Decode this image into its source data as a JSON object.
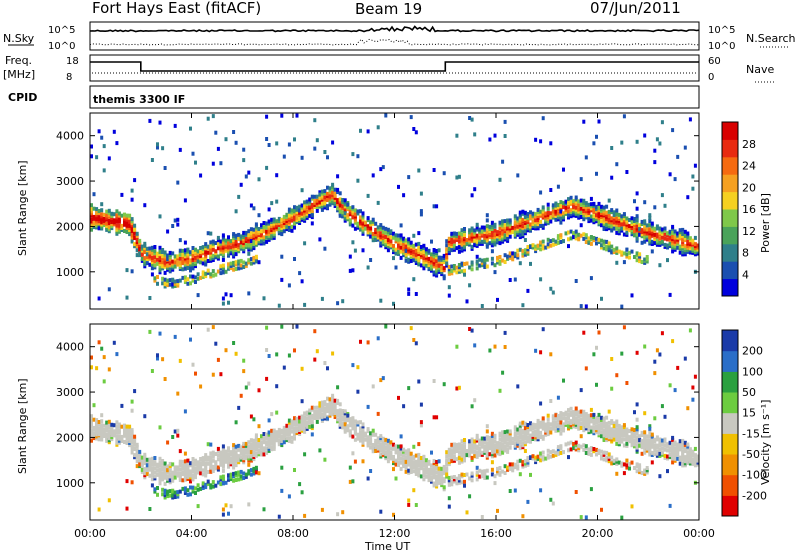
{
  "header": {
    "title": "Fort Hays East (fitACF)",
    "beam": "Beam 19",
    "date": "07/Jun/2011"
  },
  "nsky_panel": {
    "left_label": "N.Sky",
    "right_label": "N.Search",
    "left_ticks": [
      "10^5",
      "10^0"
    ],
    "right_ticks": [
      "10^5",
      "10^0"
    ]
  },
  "freq_panel": {
    "left_label_line1": "Freq.",
    "left_label_line2": "[MHz]",
    "right_label": "Nave",
    "left_ticks": [
      "18",
      "8"
    ],
    "right_ticks": [
      "60",
      "0"
    ],
    "freq_steps": [
      {
        "t0": 0,
        "t1": 2.0,
        "value": "high"
      },
      {
        "t0": 2.0,
        "t1": 14.0,
        "value": "low"
      },
      {
        "t0": 14.0,
        "t1": 24,
        "value": "high"
      }
    ]
  },
  "cpid_panel": {
    "label": "CPID",
    "program": "themis 3300 IF"
  },
  "power_panel": {
    "ylabel": "Slant Range [km]",
    "yticks": [
      "4000",
      "3000",
      "2000",
      "1000"
    ],
    "colorbar_label": "Power [dB]",
    "colorbar_ticks": [
      "28",
      "24",
      "20",
      "16",
      "12",
      "8",
      "4"
    ]
  },
  "velocity_panel": {
    "ylabel": "Slant Range [km]",
    "yticks": [
      "4000",
      "3000",
      "2000",
      "1000"
    ],
    "colorbar_label": "Velocity [m s⁻¹]",
    "colorbar_ticks": [
      "200",
      "100",
      "50",
      "15",
      "-15",
      "-50",
      "-100",
      "-200"
    ]
  },
  "time_axis": {
    "label": "Time UT",
    "ticks": [
      "00:00",
      "04:00",
      "08:00",
      "12:00",
      "16:00",
      "20:00",
      "00:00"
    ]
  },
  "colors": {
    "power_scale": [
      "#0000dd",
      "#1a4fb0",
      "#2f7f8a",
      "#4aa35a",
      "#7fc84a",
      "#f5d020",
      "#f5a020",
      "#f56a10",
      "#e82a10",
      "#d80000"
    ],
    "velocity_scale": [
      "#1a3aa8",
      "#2a6ec8",
      "#2aa040",
      "#6ccc40",
      "#c8c8c0",
      "#f0c000",
      "#f09000",
      "#f05000",
      "#e00000"
    ]
  },
  "chart_data": {
    "type": "heatmap",
    "x_range_hours": [
      0,
      24
    ],
    "y_range_km": [
      180,
      4500
    ],
    "main_echo_band_km": [
      [
        0.0,
        2250
      ],
      [
        0.5,
        2200
      ],
      [
        1.0,
        2150
      ],
      [
        1.5,
        2100
      ],
      [
        2.0,
        1450
      ],
      [
        3.0,
        1250
      ],
      [
        4.0,
        1350
      ],
      [
        5.0,
        1550
      ],
      [
        6.0,
        1700
      ],
      [
        7.0,
        1950
      ],
      [
        8.0,
        2250
      ],
      [
        9.0,
        2600
      ],
      [
        9.5,
        2750
      ],
      [
        10.0,
        2400
      ],
      [
        11.0,
        2000
      ],
      [
        12.0,
        1650
      ],
      [
        13.0,
        1400
      ],
      [
        13.9,
        1150
      ],
      [
        14.1,
        1700
      ],
      [
        15.0,
        1800
      ],
      [
        16.0,
        1900
      ],
      [
        17.0,
        2100
      ],
      [
        18.0,
        2300
      ],
      [
        19.0,
        2500
      ],
      [
        20.0,
        2300
      ],
      [
        21.0,
        2100
      ],
      [
        22.0,
        1900
      ],
      [
        23.0,
        1750
      ],
      [
        24.0,
        1600
      ]
    ]
  }
}
